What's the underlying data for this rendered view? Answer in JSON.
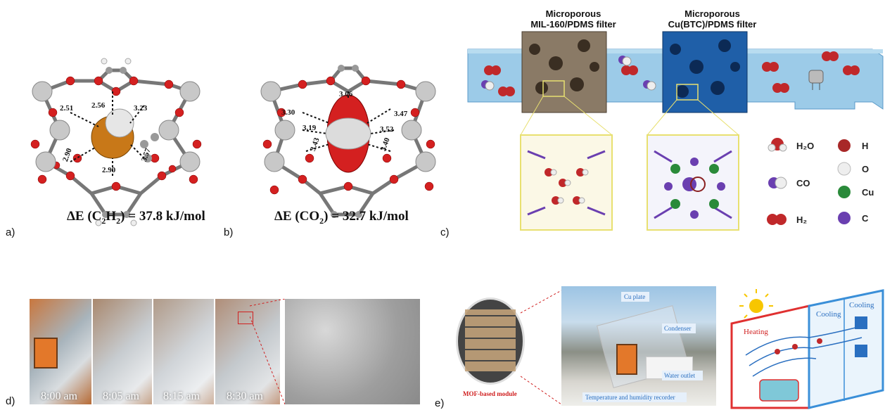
{
  "panels": {
    "a": {
      "letter": "a)",
      "energy_prefix": "ΔE (C",
      "energy_sub": "2",
      "energy_mid": "H",
      "energy_sub2": "2",
      "energy_value": ") = 37.8 kJ/mol",
      "distances": [
        "2.51",
        "2.56",
        "3.23",
        "2.90",
        "3.57",
        "2.90"
      ]
    },
    "b": {
      "letter": "b)",
      "energy_prefix": "ΔE (CO",
      "energy_sub": "2",
      "energy_value": ") = 32.7 kJ/mol",
      "distances": [
        "3.06",
        "3.30",
        "3.47",
        "3.19",
        "3.52",
        "3.43",
        "3.40"
      ]
    },
    "c": {
      "letter": "c)",
      "filter1_line1": "Microporous",
      "filter1_line2": "MIL-160/PDMS filter",
      "filter2_line1": "Microporous",
      "filter2_line2": "Cu(BTC)/PDMS filter",
      "legend": [
        {
          "label": "H₂O",
          "icon": "water-molecule-icon"
        },
        {
          "label": "H",
          "icon": "hydrogen-atom-icon"
        },
        {
          "label": "CO",
          "icon": "co-molecule-icon"
        },
        {
          "label": "O",
          "icon": "oxygen-atom-icon"
        },
        {
          "label": "Cu",
          "icon": "copper-atom-icon"
        },
        {
          "label": "H₂",
          "icon": "h2-molecule-icon"
        },
        {
          "label": "C",
          "icon": "carbon-atom-icon"
        }
      ]
    },
    "d": {
      "letter": "d)",
      "times": [
        "8:00 am",
        "8:05 am",
        "8:15 am",
        "8:30 am"
      ]
    },
    "e": {
      "letter": "e)",
      "mof_label": "MOF-based module",
      "photo_labels": {
        "cu_plate": "Cu plate",
        "condenser": "Condenser",
        "water_outlet": "Water outlet",
        "recorder": "Temperature and humidity recorder"
      },
      "scheme_labels": {
        "heating": "Heating",
        "cooling1": "Cooling",
        "cooling2": "Cooling"
      }
    }
  },
  "colors": {
    "oxygen_red": "#d42020",
    "metal_grey": "#c8c8c8",
    "acetylene_orange": "#c87818",
    "channel_blue": "#9ccbe8",
    "mil160_brown": "#8a7a66",
    "cubtc_blue": "#1f5fa8",
    "legend_purple": "#6a3fb0",
    "legend_green": "#2a8a3a",
    "highlight_yellow": "#e8e070"
  }
}
